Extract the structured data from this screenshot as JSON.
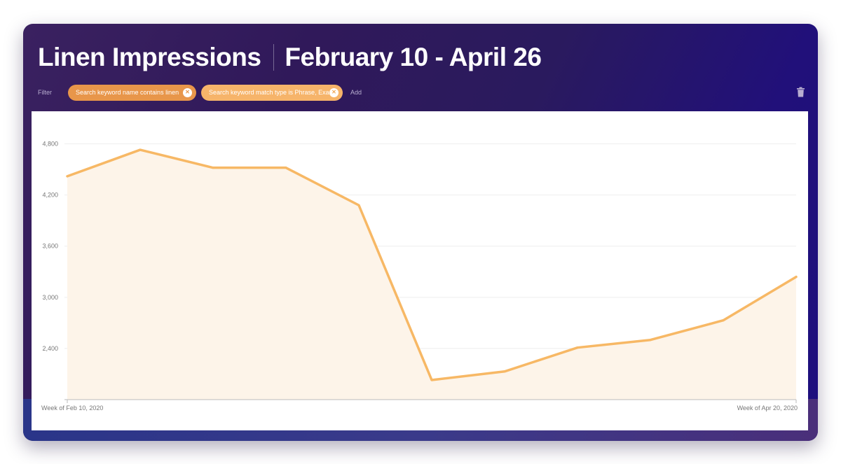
{
  "header": {
    "title": "Linen Impressions",
    "date_range": "February 10 - April 26"
  },
  "filters": {
    "label": "Filter",
    "chips": [
      {
        "text": "Search keyword name contains linen",
        "remove_icon": "close-circle-icon"
      },
      {
        "text": "Search keyword match type is Phrase, Exact",
        "remove_icon": "close-circle-icon"
      }
    ],
    "add_label": "Add",
    "delete_icon": "trash-icon"
  },
  "colors": {
    "line": "#f7b865",
    "area": "#fdf4e9",
    "grid": "#eeeeee",
    "chip_primary": "#e8964a",
    "chip_secondary": "#f6b46a"
  },
  "chart_data": {
    "type": "area",
    "y_ticks": [
      "4,800",
      "4,200",
      "3,600",
      "3,000",
      "2,400"
    ],
    "y_tick_values": [
      4800,
      4200,
      3600,
      3000,
      2400
    ],
    "ylim": [
      1800,
      5100
    ],
    "x_labels": [
      "Week of Feb 10, 2020",
      "Week of Apr 20, 2020"
    ],
    "grid": true,
    "series": [
      {
        "values": [
          4420,
          4730,
          4520,
          4520,
          4080,
          2030,
          2130,
          2410,
          2500,
          2730,
          3240
        ]
      }
    ]
  }
}
